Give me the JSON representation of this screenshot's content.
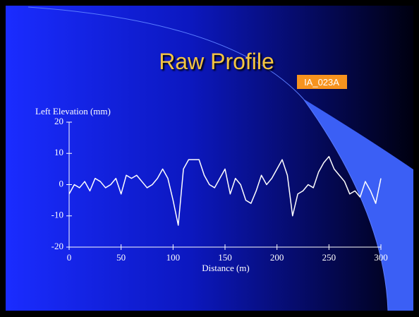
{
  "chart_data": {
    "type": "line",
    "title": "Raw Profile",
    "annotation": "IA_023A",
    "y_label": "Left Elevation (mm)",
    "x_label": "Distance (m)",
    "x": [
      0,
      5,
      10,
      15,
      20,
      25,
      30,
      35,
      40,
      45,
      50,
      55,
      60,
      65,
      70,
      75,
      80,
      85,
      90,
      95,
      100,
      105,
      110,
      115,
      120,
      125,
      130,
      135,
      140,
      145,
      150,
      155,
      160,
      165,
      170,
      175,
      180,
      185,
      190,
      195,
      200,
      205,
      210,
      215,
      220,
      225,
      230,
      235,
      240,
      245,
      250,
      255,
      260,
      265,
      270,
      275,
      280,
      285,
      290,
      295,
      300
    ],
    "series": [
      {
        "name": "Left Elevation",
        "color": "#ffffff",
        "values": [
          -3,
          0,
          -1,
          1,
          -2,
          2,
          1,
          -1,
          0,
          2,
          -3,
          3,
          2,
          3,
          1,
          -1,
          0,
          2,
          5,
          2,
          -5,
          -13,
          5,
          8,
          8,
          8,
          3,
          0,
          -1,
          2,
          5,
          -3,
          2,
          0,
          -5,
          -6,
          -2,
          3,
          0,
          2,
          5,
          8,
          3,
          -10,
          -3,
          -2,
          0,
          -1,
          4,
          7,
          9,
          5,
          3,
          1,
          -3,
          -2,
          -4,
          1,
          -2,
          -6,
          2
        ]
      }
    ],
    "xlim": [
      0,
      300
    ],
    "xticks": [
      0,
      50,
      100,
      150,
      200,
      250,
      300
    ],
    "ylim": [
      -20,
      20
    ],
    "yticks": [
      -20,
      -10,
      0,
      10,
      20
    ]
  }
}
